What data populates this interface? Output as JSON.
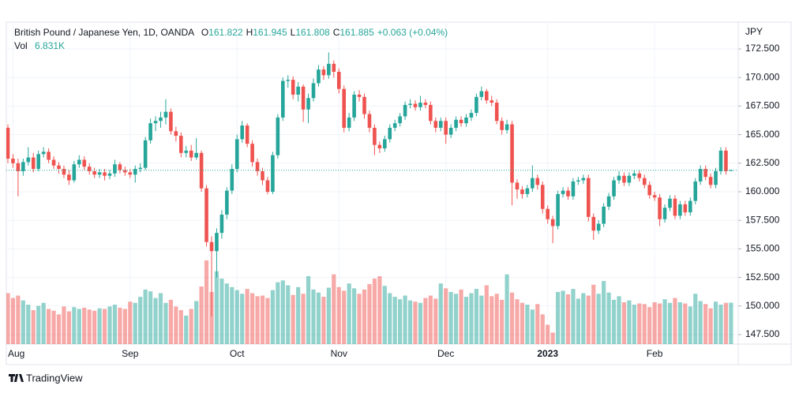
{
  "chart_data": {
    "type": "candlestick",
    "title": "British Pound / Japanese Yen, 1D, OANDA",
    "ohlc_legend": [
      {
        "label": "O",
        "value": 161.822
      },
      {
        "label": "H",
        "value": 161.945
      },
      {
        "label": "L",
        "value": 161.808
      },
      {
        "label": "C",
        "value": 161.885
      }
    ],
    "change": "+0.063 (+0.04%)",
    "volume_label": "Vol",
    "volume_value_label": "6.831K",
    "currency": "JPY",
    "brand": "TradingView",
    "up_color": "#26a69a",
    "down_color": "#ef5350",
    "volume_opacity": 0.5,
    "grid": true,
    "price_line": true,
    "ylim": [
      146.67,
      174.85
    ],
    "yticks": [
      {
        "value": 147.5,
        "label": "147.500"
      },
      {
        "value": 150,
        "label": "150.000"
      },
      {
        "value": 152.5,
        "label": "152.500"
      },
      {
        "value": 155,
        "label": "155.000"
      },
      {
        "value": 157.5,
        "label": "157.500"
      },
      {
        "value": 160,
        "label": "160.000"
      },
      {
        "value": 162.5,
        "label": "162.500"
      },
      {
        "value": 165,
        "label": "165.000"
      },
      {
        "value": 167.5,
        "label": "167.500"
      },
      {
        "value": 170,
        "label": "170.000"
      },
      {
        "value": 172.5,
        "label": "172.500"
      }
    ],
    "bold_categories": [
      "2023"
    ],
    "categories": [
      null,
      "Aug",
      null,
      null,
      null,
      null,
      null,
      null,
      null,
      null,
      null,
      null,
      null,
      null,
      null,
      null,
      null,
      null,
      null,
      null,
      null,
      null,
      null,
      null,
      "Sep",
      null,
      null,
      null,
      null,
      null,
      null,
      null,
      null,
      null,
      null,
      null,
      null,
      null,
      null,
      null,
      null,
      null,
      null,
      null,
      null,
      "Oct",
      null,
      null,
      null,
      null,
      null,
      null,
      null,
      null,
      null,
      null,
      null,
      null,
      null,
      null,
      null,
      null,
      null,
      null,
      null,
      "Nov",
      null,
      null,
      null,
      null,
      null,
      null,
      null,
      null,
      null,
      null,
      null,
      null,
      null,
      null,
      null,
      null,
      null,
      null,
      null,
      null,
      "Dec",
      null,
      null,
      null,
      null,
      null,
      null,
      null,
      null,
      null,
      null,
      null,
      null,
      null,
      null,
      null,
      null,
      null,
      null,
      null,
      "2023",
      null,
      null,
      null,
      null,
      null,
      null,
      null,
      null,
      null,
      null,
      null,
      null,
      null,
      null,
      null,
      null,
      null,
      null,
      null,
      null,
      "Feb",
      null,
      null,
      null,
      null,
      null,
      null,
      null,
      null,
      null,
      null,
      null,
      null,
      null,
      null,
      null
    ],
    "open": [
      165.6,
      162.9,
      162.5,
      161.8,
      162.6,
      163.0,
      162.0,
      163.3,
      163.5,
      162.8,
      162.3,
      162.0,
      161.5,
      161.0,
      162.4,
      162.8,
      162.2,
      161.8,
      161.5,
      161.7,
      161.4,
      161.6,
      162.4,
      161.9,
      161.7,
      161.5,
      162.0,
      162.1,
      164.5,
      166.0,
      166.2,
      166.5,
      167.0,
      165.3,
      164.9,
      163.4,
      163.6,
      163.0,
      163.4,
      160.3,
      155.6,
      154.8,
      156.4,
      158.0,
      160.1,
      162.0,
      164.6,
      165.8,
      164.2,
      162.6,
      161.8,
      161.0,
      160.0,
      163.2,
      166.5,
      169.7,
      169.8,
      168.5,
      169.2,
      167.2,
      168.2,
      169.5,
      170.7,
      170.2,
      171.2,
      170.5,
      169.0,
      165.6,
      166.5,
      168.5,
      168.3,
      166.8,
      165.6,
      164.1,
      163.8,
      164.6,
      165.6,
      166.0,
      166.6,
      167.6,
      167.7,
      167.4,
      167.8,
      167.6,
      166.2,
      165.6,
      166.2,
      165.0,
      165.6,
      166.3,
      166.0,
      166.5,
      166.9,
      168.3,
      168.8,
      168.0,
      167.8,
      166.2,
      165.4,
      165.9,
      160.8,
      160.2,
      159.8,
      160.3,
      161.2,
      160.6,
      158.5,
      157.6,
      157.0,
      159.8,
      160.1,
      159.6,
      160.9,
      161.0,
      161.2,
      157.8,
      156.6,
      157.2,
      158.7,
      159.6,
      161.0,
      161.4,
      160.8,
      161.4,
      161.6,
      161.2,
      160.6,
      159.7,
      159.5,
      157.6,
      158.6,
      159.4,
      157.9,
      158.9,
      158.2,
      159.2,
      160.9,
      162.0,
      161.3,
      160.6,
      161.8,
      163.6,
      161.822
    ],
    "high": [
      165.9,
      163.3,
      162.9,
      162.9,
      163.9,
      163.4,
      163.6,
      163.9,
      163.8,
      163.1,
      162.6,
      162.3,
      161.9,
      162.7,
      163.2,
      163.1,
      162.5,
      162.1,
      162.0,
      162.0,
      161.9,
      162.8,
      162.6,
      162.2,
      162.0,
      162.3,
      162.5,
      164.8,
      166.4,
      166.6,
      167.0,
      168.1,
      167.3,
      165.7,
      165.2,
      164.0,
      164.1,
      164.7,
      163.6,
      160.6,
      156.1,
      156.8,
      158.4,
      160.4,
      162.4,
      165.0,
      166.2,
      166.0,
      164.5,
      162.9,
      162.1,
      161.3,
      163.5,
      166.8,
      170.0,
      170.2,
      170.1,
      169.6,
      169.4,
      168.6,
      169.9,
      171.1,
      171.0,
      172.2,
      171.5,
      170.8,
      169.3,
      166.9,
      168.8,
      168.9,
      168.6,
      167.1,
      165.9,
      164.4,
      164.9,
      165.9,
      166.3,
      166.9,
      167.9,
      168.1,
      168.0,
      168.4,
      168.1,
      167.9,
      166.5,
      166.5,
      166.5,
      165.9,
      166.6,
      166.6,
      166.8,
      167.2,
      168.6,
      169.2,
      169.0,
      168.4,
      168.1,
      166.5,
      166.3,
      166.2,
      161.1,
      160.5,
      160.6,
      162.3,
      161.5,
      160.9,
      158.8,
      157.9,
      160.1,
      160.4,
      160.4,
      161.2,
      161.3,
      161.5,
      161.5,
      158.1,
      157.5,
      159.0,
      159.9,
      161.3,
      161.8,
      161.7,
      161.7,
      161.9,
      161.9,
      161.5,
      160.9,
      160.0,
      159.8,
      158.9,
      159.7,
      159.7,
      159.2,
      159.2,
      159.5,
      161.2,
      162.3,
      162.3,
      161.6,
      162.1,
      163.9,
      163.9,
      161.945
    ],
    "low": [
      162.5,
      162.1,
      159.6,
      161.4,
      162.3,
      161.7,
      161.8,
      163.0,
      162.5,
      162.0,
      161.6,
      161.2,
      160.6,
      160.8,
      162.1,
      161.9,
      161.5,
      161.2,
      161.2,
      161.0,
      161.1,
      161.3,
      161.6,
      161.4,
      161.2,
      160.8,
      161.7,
      161.9,
      164.2,
      165.3,
      165.6,
      165.9,
      165.0,
      164.4,
      163.0,
      163.0,
      162.7,
      162.8,
      160.0,
      155.2,
      149.1,
      152.5,
      155.9,
      157.6,
      159.8,
      161.7,
      164.3,
      163.9,
      162.2,
      161.4,
      160.6,
      159.8,
      159.8,
      162.9,
      166.2,
      169.1,
      168.1,
      167.9,
      166.1,
      166.0,
      167.9,
      169.2,
      169.8,
      169.9,
      170.0,
      168.6,
      165.2,
      165.3,
      166.2,
      167.9,
      166.4,
      165.2,
      163.2,
      163.4,
      163.5,
      164.3,
      165.3,
      165.7,
      166.3,
      167.3,
      167.1,
      167.1,
      167.3,
      165.9,
      165.2,
      165.3,
      164.2,
      164.7,
      165.3,
      165.7,
      165.7,
      166.2,
      166.6,
      168.0,
      167.7,
      167.5,
      165.9,
      165.0,
      165.1,
      158.8,
      159.4,
      159.4,
      159.5,
      160.0,
      160.2,
      158.1,
      157.2,
      155.5,
      156.7,
      159.5,
      159.3,
      159.3,
      160.6,
      160.7,
      157.4,
      155.8,
      156.3,
      156.9,
      158.4,
      159.3,
      160.7,
      160.5,
      160.5,
      161.1,
      160.9,
      160.3,
      159.4,
      159.2,
      157.0,
      157.3,
      158.3,
      157.6,
      157.6,
      157.9,
      157.9,
      158.9,
      160.6,
      161.0,
      160.3,
      160.3,
      161.5,
      161.5,
      161.808
    ],
    "close": [
      162.9,
      162.5,
      161.8,
      162.6,
      163.0,
      162.0,
      163.3,
      163.5,
      162.8,
      162.3,
      162.0,
      161.5,
      161.0,
      162.4,
      162.8,
      162.2,
      161.8,
      161.5,
      161.7,
      161.4,
      161.6,
      162.4,
      161.9,
      161.7,
      161.5,
      162.0,
      162.1,
      164.5,
      166.0,
      166.2,
      166.5,
      167.0,
      165.3,
      164.9,
      163.4,
      163.6,
      163.0,
      163.4,
      160.3,
      155.6,
      154.8,
      156.4,
      158.0,
      160.1,
      162.0,
      164.6,
      165.8,
      164.2,
      162.6,
      161.8,
      161.0,
      160.0,
      163.2,
      166.5,
      169.7,
      169.8,
      168.5,
      169.2,
      167.2,
      168.2,
      169.5,
      170.7,
      170.2,
      171.2,
      170.5,
      169.0,
      165.6,
      166.5,
      168.5,
      168.3,
      166.8,
      165.6,
      164.1,
      163.8,
      164.6,
      165.6,
      166.0,
      166.6,
      167.6,
      167.7,
      167.4,
      167.8,
      167.6,
      166.2,
      165.6,
      166.2,
      165.0,
      165.6,
      166.3,
      166.0,
      166.5,
      166.9,
      168.3,
      168.8,
      168.0,
      167.8,
      166.2,
      165.4,
      165.9,
      160.8,
      160.2,
      159.8,
      160.3,
      161.2,
      160.6,
      158.5,
      157.6,
      157.0,
      159.8,
      160.1,
      159.6,
      160.9,
      161.0,
      161.2,
      157.8,
      156.6,
      157.2,
      158.7,
      159.6,
      161.0,
      161.4,
      160.8,
      161.4,
      161.6,
      161.2,
      160.6,
      159.7,
      159.5,
      157.6,
      158.6,
      159.4,
      157.9,
      158.9,
      158.2,
      159.2,
      160.9,
      162.0,
      161.3,
      160.6,
      161.8,
      163.6,
      161.8,
      161.885
    ],
    "volume": [
      8400,
      7600,
      8000,
      7200,
      6500,
      5600,
      6300,
      6800,
      5800,
      5500,
      4900,
      6200,
      5400,
      6100,
      5800,
      6000,
      5700,
      5500,
      5900,
      5800,
      6200,
      6500,
      6000,
      5800,
      7000,
      6800,
      7800,
      9000,
      8700,
      7600,
      8400,
      6800,
      7300,
      6200,
      5600,
      4700,
      5800,
      7100,
      9500,
      13800,
      8600,
      12000,
      10800,
      10000,
      9400,
      8900,
      8300,
      9100,
      8400,
      7900,
      8000,
      7600,
      8900,
      10200,
      10500,
      9700,
      8100,
      9400,
      8300,
      11200,
      9000,
      8500,
      7800,
      9300,
      11500,
      9400,
      8800,
      10000,
      9200,
      8300,
      9000,
      9900,
      10800,
      11200,
      9600,
      8400,
      7800,
      7400,
      8000,
      7200,
      7000,
      6800,
      7600,
      8000,
      7500,
      10000,
      9200,
      8600,
      8300,
      9000,
      7800,
      8400,
      9100,
      8000,
      9700,
      7900,
      8300,
      7300,
      11500,
      8500,
      7400,
      6800,
      6500,
      5700,
      6600,
      4900,
      3200,
      1900,
      8600,
      8800,
      8200,
      9100,
      7500,
      8400,
      8000,
      9800,
      8300,
      10400,
      8500,
      7300,
      7900,
      6900,
      7200,
      6500,
      6700,
      6600,
      6100,
      6900,
      6700,
      7400,
      6800,
      7600,
      6900,
      6700,
      6200,
      8300,
      7100,
      6600,
      5900,
      7000,
      6500,
      6800,
      6831
    ]
  }
}
